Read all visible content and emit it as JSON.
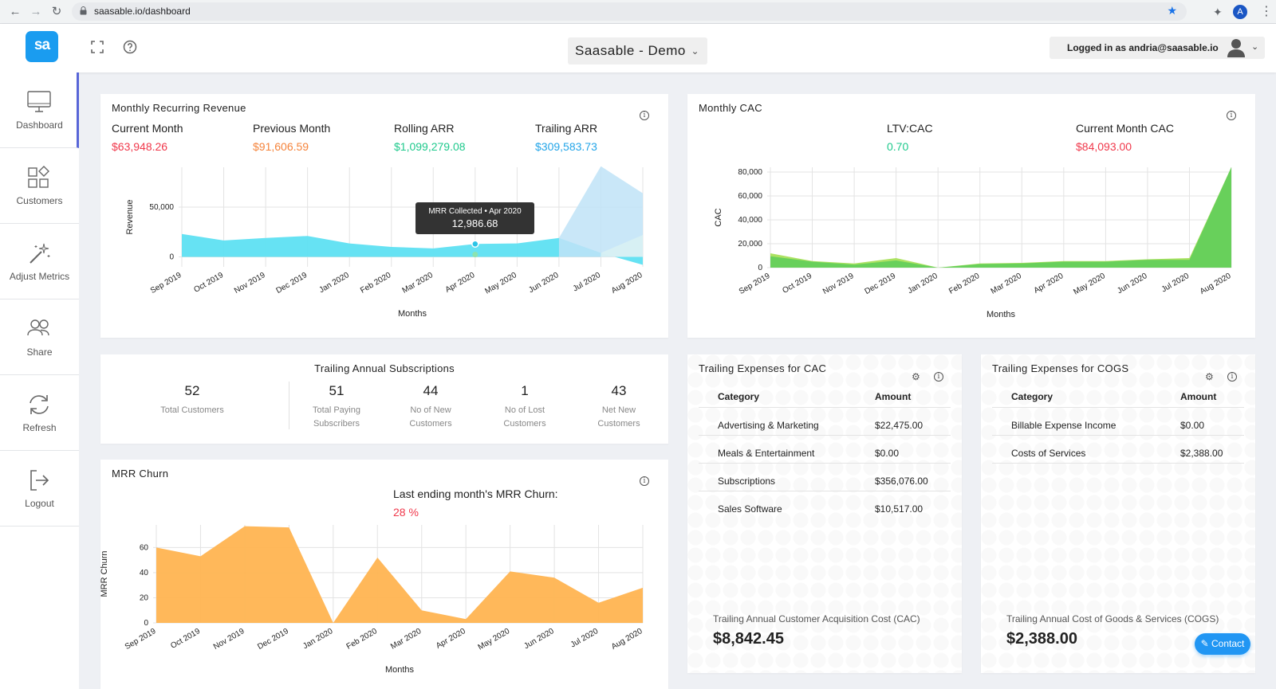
{
  "browser": {
    "url": "saasable.io/dashboard",
    "profile_initial": "A"
  },
  "header": {
    "logo_text": "sa",
    "workspace": "Saasable - Demo",
    "user_label": "Logged in as andria@saasable.io"
  },
  "sidebar": {
    "items": [
      {
        "label": "Dashboard",
        "icon": "monitor-icon"
      },
      {
        "label": "Customers",
        "icon": "grid-icon"
      },
      {
        "label": "Adjust Metrics",
        "icon": "magic-wand-icon"
      },
      {
        "label": "Share",
        "icon": "users-icon"
      },
      {
        "label": "Refresh",
        "icon": "refresh-icon"
      },
      {
        "label": "Logout",
        "icon": "logout-icon"
      }
    ]
  },
  "mrr": {
    "title": "Monthly Recurring Revenue",
    "stats": [
      {
        "label": "Current Month",
        "value": "$63,948.26",
        "color": "#f0384b"
      },
      {
        "label": "Previous Month",
        "value": "$91,606.59",
        "color": "#f5843c"
      },
      {
        "label": "Rolling ARR",
        "value": "$1,099,279.08",
        "color": "#1ec98c"
      },
      {
        "label": "Trailing ARR",
        "value": "$309,583.73",
        "color": "#23a5e8"
      }
    ],
    "tooltip": {
      "title": "MRR Collected • Apr 2020",
      "value": "12,986.68"
    }
  },
  "cac": {
    "title": "Monthly CAC",
    "stats": [
      {
        "label": "LTV:CAC",
        "value": "0.70",
        "color": "#1ec98c"
      },
      {
        "label": "Current Month CAC",
        "value": "$84,093.00",
        "color": "#f0384b"
      }
    ]
  },
  "subs": {
    "title": "Trailing Annual Subscriptions",
    "items": [
      {
        "num": "52",
        "label": "Total Customers"
      },
      {
        "num": "51",
        "label": "Total Paying Subscribers"
      },
      {
        "num": "44",
        "label": "No of New Customers"
      },
      {
        "num": "1",
        "label": "No of Lost Customers"
      },
      {
        "num": "43",
        "label": "Net New Customers"
      }
    ]
  },
  "churn": {
    "title": "MRR Churn",
    "highlight_label": "Last ending month's MRR Churn:",
    "highlight_value": "28 %",
    "highlight_color": "#f0384b"
  },
  "exp_cac": {
    "title": "Trailing Expenses for CAC",
    "col_category": "Category",
    "col_amount": "Amount",
    "rows": [
      {
        "category": "Advertising & Marketing",
        "amount": "$22,475.00"
      },
      {
        "category": "Meals & Entertainment",
        "amount": "$0.00"
      },
      {
        "category": "Subscriptions",
        "amount": "$356,076.00"
      },
      {
        "category": "Sales Software",
        "amount": "$10,517.00"
      }
    ],
    "footer_label": "Trailing Annual Customer Acquisition Cost (CAC)",
    "footer_value": "$8,842.45"
  },
  "exp_cogs": {
    "title": "Trailing Expenses for COGS",
    "col_category": "Category",
    "col_amount": "Amount",
    "rows": [
      {
        "category": "Billable Expense Income",
        "amount": "$0.00"
      },
      {
        "category": "Costs of Services",
        "amount": "$2,388.00"
      }
    ],
    "footer_label": "Trailing Annual Cost of Goods & Services (COGS)",
    "footer_value": "$2,388.00"
  },
  "contact_label": "Contact",
  "chart_data": [
    {
      "type": "area",
      "title": "Monthly Recurring Revenue",
      "xlabel": "Months",
      "ylabel": "Revenue",
      "categories": [
        "Sep 2019",
        "Oct 2019",
        "Nov 2019",
        "Dec 2019",
        "Jan 2020",
        "Feb 2020",
        "Mar 2020",
        "Apr 2020",
        "May 2020",
        "Jun 2020",
        "Jul 2020",
        "Aug 2020"
      ],
      "yticks": [
        "50,000",
        "0"
      ],
      "ylim": [
        -10000,
        90000
      ],
      "series": [
        {
          "name": "MRR Collected",
          "color": "#5ee0f2",
          "values": [
            23000,
            16500,
            19000,
            21000,
            13500,
            10000,
            8500,
            12987,
            13500,
            19000,
            4000,
            -8000
          ]
        },
        {
          "color": "#bfe3f7",
          "values": [
            null,
            null,
            null,
            null,
            null,
            null,
            null,
            null,
            null,
            19000,
            91000,
            63948
          ]
        },
        {
          "color": "#d9f1f3",
          "values": [
            null,
            null,
            null,
            null,
            null,
            null,
            null,
            null,
            null,
            null,
            4000,
            22000
          ]
        }
      ],
      "grid": true
    },
    {
      "type": "area",
      "title": "Monthly CAC",
      "xlabel": "Months",
      "ylabel": "CAC",
      "categories": [
        "Sep 2019",
        "Oct 2019",
        "Nov 2019",
        "Dec 2019",
        "Jan 2020",
        "Feb 2020",
        "Mar 2020",
        "Apr 2020",
        "May 2020",
        "Jun 2020",
        "Jul 2020",
        "Aug 2020"
      ],
      "yticks": [
        "80,000",
        "60,000",
        "40,000",
        "20,000",
        "0"
      ],
      "ylim": [
        0,
        84000
      ],
      "series": [
        {
          "color": "#a8e05a",
          "values": [
            12000,
            5500,
            3500,
            8000,
            0,
            3500,
            4000,
            5500,
            5500,
            7000,
            8000,
            84093
          ]
        },
        {
          "color": "#5ccc5a",
          "values": [
            9500,
            5000,
            2500,
            6000,
            0,
            3000,
            3500,
            5000,
            5000,
            6500,
            6500,
            84093
          ]
        }
      ],
      "grid": true
    },
    {
      "type": "area",
      "title": "MRR Churn",
      "xlabel": "Months",
      "ylabel": "MRR Churn",
      "categories": [
        "Sep 2019",
        "Oct 2019",
        "Nov 2019",
        "Dec 2019",
        "Jan 2020",
        "Feb 2020",
        "Mar 2020",
        "Apr 2020",
        "May 2020",
        "Jun 2020",
        "Jul 2020",
        "Aug 2020"
      ],
      "yticks": [
        "60",
        "40",
        "20",
        "0"
      ],
      "ylim": [
        0,
        78
      ],
      "series": [
        {
          "color": "#ffb451",
          "values": [
            60,
            53,
            77,
            76,
            0,
            52,
            10,
            3,
            41,
            36,
            16,
            28
          ]
        }
      ],
      "grid": true
    }
  ]
}
